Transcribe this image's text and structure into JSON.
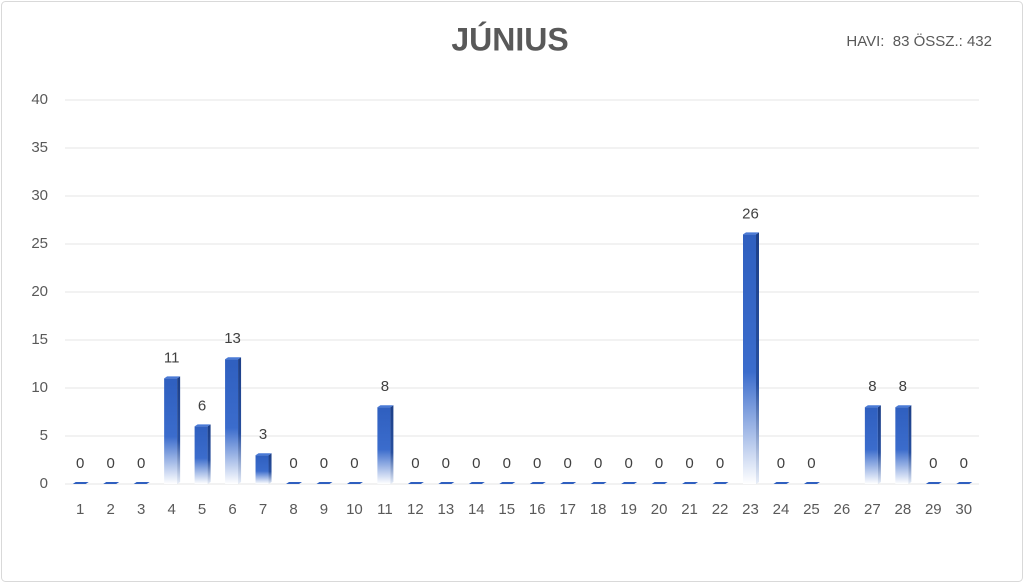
{
  "chart_data": {
    "type": "bar",
    "title": "JÚNIUS",
    "subtitle": "HAVI:  83 ÖSSZ.: 432",
    "categories": [
      "1",
      "2",
      "3",
      "4",
      "5",
      "6",
      "7",
      "8",
      "9",
      "10",
      "11",
      "12",
      "13",
      "14",
      "15",
      "16",
      "17",
      "18",
      "19",
      "20",
      "21",
      "22",
      "23",
      "24",
      "25",
      "26",
      "27",
      "28",
      "29",
      "30"
    ],
    "values": [
      0,
      0,
      0,
      11,
      6,
      13,
      3,
      0,
      0,
      0,
      8,
      0,
      0,
      0,
      0,
      0,
      0,
      0,
      0,
      0,
      0,
      0,
      26,
      0,
      0,
      null,
      8,
      8,
      0,
      0
    ],
    "color": "#2f5fbf",
    "ylim": [
      0,
      40
    ],
    "yticks": [
      0,
      5,
      10,
      15,
      20,
      25,
      30,
      35,
      40
    ],
    "grid": true
  }
}
